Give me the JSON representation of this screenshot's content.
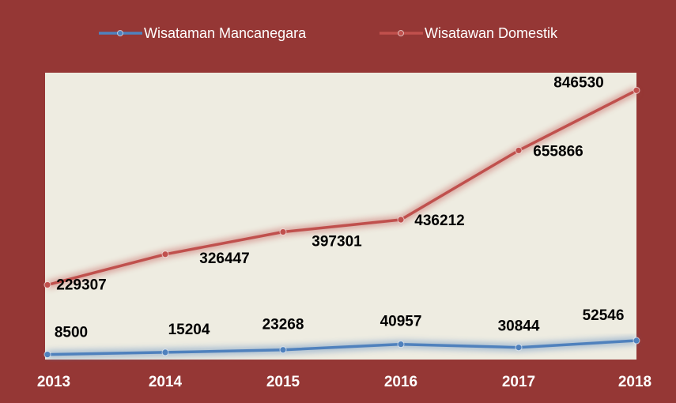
{
  "chart_data": {
    "type": "line",
    "categories": [
      "2013",
      "2014",
      "2015",
      "2016",
      "2017",
      "2018"
    ],
    "series": [
      {
        "name": "Wisataman Mancanegara",
        "color": "#4f81bd",
        "values": [
          8500,
          15204,
          23268,
          40957,
          30844,
          52546
        ]
      },
      {
        "name": "Wisatawan Domestik",
        "color": "#c0504d",
        "values": [
          229307,
          326447,
          397301,
          436212,
          655866,
          846530
        ]
      }
    ],
    "ylim": [
      0,
      900000
    ],
    "legend": "top"
  }
}
